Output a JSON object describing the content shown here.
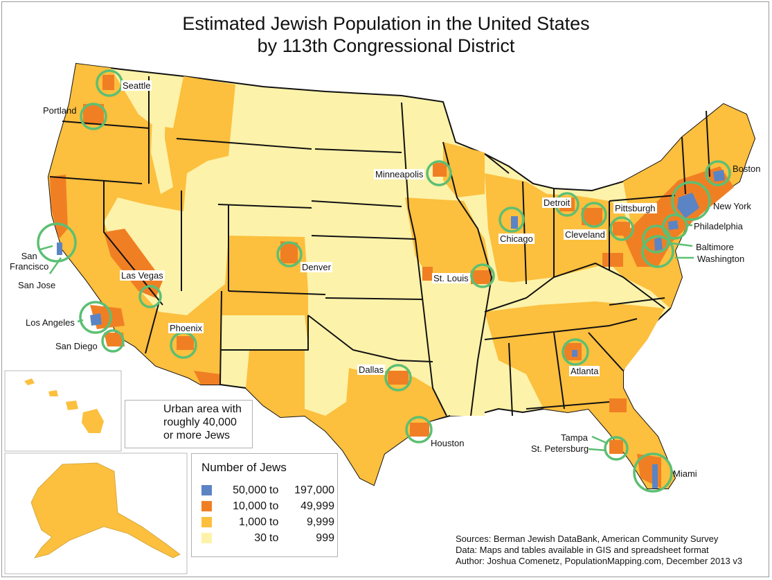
{
  "title": {
    "line1": "Estimated Jewish Population in the United States",
    "line2": "by 113th Congressional District"
  },
  "legend": {
    "title": "Number of Jews",
    "items": [
      {
        "from": "50,000",
        "to": "to",
        "max": "197,000",
        "color": "#5b84c4"
      },
      {
        "from": "10,000",
        "to": "to",
        "max": "49,999",
        "color": "#f07f24"
      },
      {
        "from": "1,000",
        "to": "to",
        "max": "9,999",
        "color": "#fcbf3e"
      },
      {
        "from": "30",
        "to": "to",
        "max": "999",
        "color": "#fdf2a9"
      }
    ]
  },
  "urban_legend": {
    "text": "Urban area with\nroughly 40,000\nor more Jews",
    "circle_color": "#5cbf74"
  },
  "sources": {
    "line1": "Sources: Berman Jewish DataBank, American Community Survey",
    "line2": "Data: Maps and tables available in GIS and spreadsheet format",
    "line3": "Author: Joshua Comenetz, PopulationMapping.com, December 2013 v3"
  },
  "cities": {
    "seattle": "Seattle",
    "portland": "Portland",
    "san_francisco": "San\nFrancisco",
    "san_jose": "San Jose",
    "los_angeles": "Los Angeles",
    "san_diego": "San Diego",
    "las_vegas": "Las Vegas",
    "phoenix": "Phoenix",
    "denver": "Denver",
    "minneapolis": "Minneapolis",
    "chicago": "Chicago",
    "st_louis": "St. Louis",
    "detroit": "Detroit",
    "cleveland": "Cleveland",
    "pittsburgh": "Pittsburgh",
    "boston": "Boston",
    "new_york": "New York",
    "philadelphia": "Philadelphia",
    "baltimore": "Baltimore",
    "washington": "Washington",
    "atlanta": "Atlanta",
    "dallas": "Dallas",
    "houston": "Houston",
    "tampa": "Tampa",
    "st_petersburg": "St. Petersburg",
    "miami": "Miami"
  },
  "colors": {
    "high": "#5b84c4",
    "mid_high": "#f07f24",
    "mid": "#fcbf3e",
    "low": "#fdf2a9",
    "urban_circle": "#5cbf74",
    "state_border": "#111111"
  }
}
